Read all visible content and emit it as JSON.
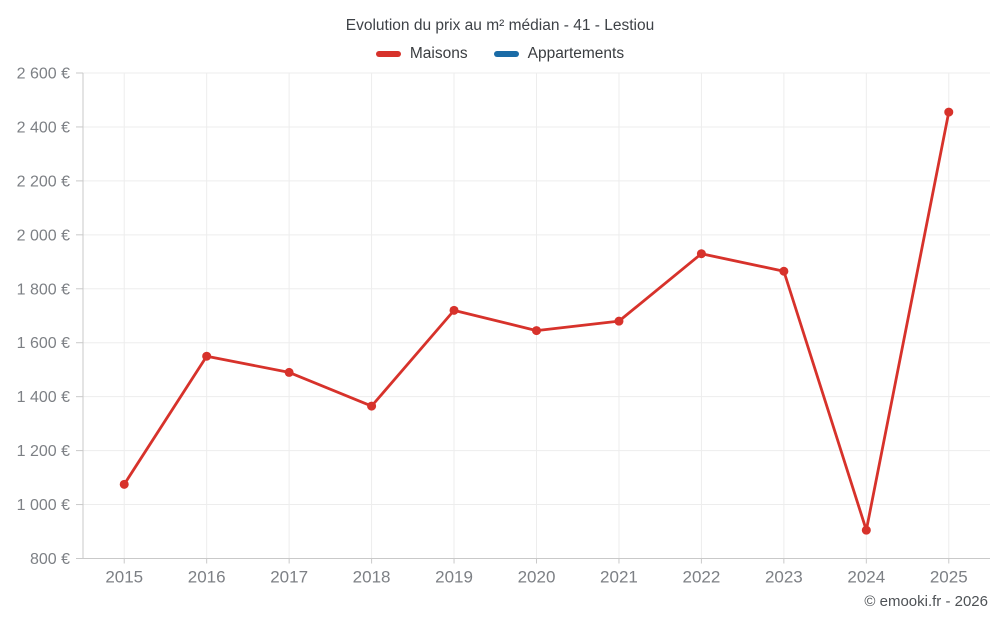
{
  "title": "Evolution du prix au m² médian - 41 - Lestiou",
  "footer": "© emooki.fr - 2026",
  "colors": {
    "maisons_red": "#d7322b",
    "appartements_blue": "#1a6ba6",
    "grid": "#ededed",
    "axis": "#c9c9c9",
    "tick_label": "#7d8085",
    "title_text": "#3e4247",
    "footer_text": "#4e5256"
  },
  "chart_data": {
    "type": "line",
    "title": "Evolution du prix au m² médian - 41 - Lestiou",
    "categories": [
      "2015",
      "2016",
      "2017",
      "2018",
      "2019",
      "2020",
      "2021",
      "2022",
      "2023",
      "2024",
      "2025"
    ],
    "series": [
      {
        "name": "Maisons",
        "color": "#d7322b",
        "values": [
          1075,
          1550,
          1490,
          1365,
          1720,
          1645,
          1680,
          1930,
          1865,
          905,
          2455
        ]
      },
      {
        "name": "Appartements",
        "color": "#1a6ba6",
        "values": []
      }
    ],
    "xlabel": "",
    "ylabel": "",
    "ylim": [
      800,
      2600
    ],
    "y_ticks": [
      {
        "v": 800,
        "label": "800 €"
      },
      {
        "v": 1000,
        "label": "1 000 €"
      },
      {
        "v": 1200,
        "label": "1 200 €"
      },
      {
        "v": 1400,
        "label": "1 400 €"
      },
      {
        "v": 1600,
        "label": "1 600 €"
      },
      {
        "v": 1800,
        "label": "1 800 €"
      },
      {
        "v": 2000,
        "label": "2 000 €"
      },
      {
        "v": 2200,
        "label": "2 200 €"
      },
      {
        "v": 2400,
        "label": "2 400 €"
      },
      {
        "v": 2600,
        "label": "2 600 €"
      }
    ],
    "grid": true,
    "legend_position": "top",
    "marker_radius": 4.5,
    "line_width": 2.8
  }
}
